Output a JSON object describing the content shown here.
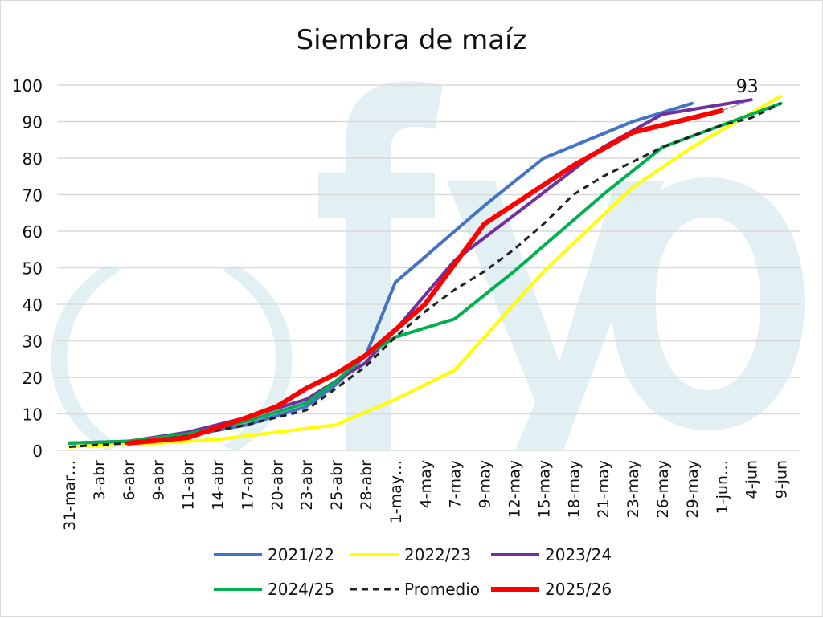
{
  "chart_data": {
    "type": "line",
    "title": "Siembra de maíz",
    "xlabel": "",
    "ylabel": "",
    "ylim": [
      0,
      100
    ],
    "yticks": [
      0,
      10,
      20,
      30,
      40,
      50,
      60,
      70,
      80,
      90,
      100
    ],
    "grid": true,
    "legend_position": "bottom",
    "categories": [
      "31-mar…",
      "3-abr",
      "6-abr",
      "9-abr",
      "11-abr",
      "14-abr",
      "17-abr",
      "20-abr",
      "23-abr",
      "25-abr",
      "28-abr",
      "1-may…",
      "4-may",
      "7-may",
      "9-may",
      "12-may",
      "15-may",
      "18-may",
      "21-may",
      "23-may",
      "26-may",
      "29-may",
      "1-jun…",
      "4-jun",
      "9-jun"
    ],
    "series": [
      {
        "name": "2021/22",
        "color": "#4472c4",
        "dash": false,
        "width": 4,
        "points": [
          [
            0,
            2
          ],
          [
            2,
            2.5
          ],
          [
            4,
            4
          ],
          [
            6,
            7
          ],
          [
            8,
            12
          ],
          [
            9,
            18
          ],
          [
            10,
            26
          ],
          [
            11,
            46
          ],
          [
            14,
            67
          ],
          [
            16,
            80
          ],
          [
            19,
            90
          ],
          [
            21,
            95
          ]
        ]
      },
      {
        "name": "2022/23",
        "color": "#ffff00",
        "dash": false,
        "width": 4,
        "points": [
          [
            0,
            1
          ],
          [
            3,
            2
          ],
          [
            5,
            3
          ],
          [
            6,
            4
          ],
          [
            8,
            6
          ],
          [
            9,
            7
          ],
          [
            11,
            14
          ],
          [
            13,
            22
          ],
          [
            16,
            49
          ],
          [
            19,
            72
          ],
          [
            21,
            83
          ],
          [
            24,
            97
          ]
        ]
      },
      {
        "name": "2023/24",
        "color": "#7030a0",
        "dash": false,
        "width": 4,
        "points": [
          [
            0,
            2
          ],
          [
            2,
            2.5
          ],
          [
            4,
            5
          ],
          [
            6,
            9
          ],
          [
            8,
            14
          ],
          [
            10,
            24
          ],
          [
            11,
            33
          ],
          [
            13,
            52
          ],
          [
            18,
            83
          ],
          [
            20,
            92
          ],
          [
            23,
            96
          ]
        ]
      },
      {
        "name": "2024/25",
        "color": "#00b050",
        "dash": false,
        "width": 4,
        "points": [
          [
            0,
            2
          ],
          [
            2,
            2.5
          ],
          [
            4,
            4.5
          ],
          [
            6,
            8
          ],
          [
            8,
            13
          ],
          [
            9,
            19
          ],
          [
            10,
            26
          ],
          [
            11,
            31
          ],
          [
            13,
            36
          ],
          [
            15,
            49
          ],
          [
            18,
            70
          ],
          [
            20,
            83
          ],
          [
            24,
            95
          ]
        ]
      },
      {
        "name": "Promedio",
        "color": "#222222",
        "dash": true,
        "width": 3,
        "points": [
          [
            0,
            1
          ],
          [
            2,
            2
          ],
          [
            4,
            4
          ],
          [
            6,
            7
          ],
          [
            7,
            9
          ],
          [
            8,
            11
          ],
          [
            9,
            17
          ],
          [
            10,
            23
          ],
          [
            11,
            31
          ],
          [
            12,
            38
          ],
          [
            13,
            44
          ],
          [
            14,
            49
          ],
          [
            15,
            55
          ],
          [
            16,
            62
          ],
          [
            17,
            70
          ],
          [
            18,
            75
          ],
          [
            19,
            79
          ],
          [
            20,
            83
          ],
          [
            21,
            86
          ],
          [
            22,
            89
          ],
          [
            23,
            91
          ],
          [
            24,
            95
          ]
        ]
      },
      {
        "name": "2025/26",
        "color": "#ff0000",
        "dash": false,
        "width": 6,
        "points": [
          [
            2,
            2
          ],
          [
            4,
            3.5
          ],
          [
            6,
            9
          ],
          [
            7,
            12
          ],
          [
            8,
            17
          ],
          [
            9,
            21
          ],
          [
            10,
            26
          ],
          [
            12,
            40
          ],
          [
            13,
            51
          ],
          [
            14,
            62
          ],
          [
            17,
            78
          ],
          [
            19,
            87
          ],
          [
            22,
            93
          ]
        ]
      }
    ],
    "annotations": [
      {
        "series": "2025/26",
        "text": "93"
      }
    ]
  },
  "watermark": "( fyo"
}
